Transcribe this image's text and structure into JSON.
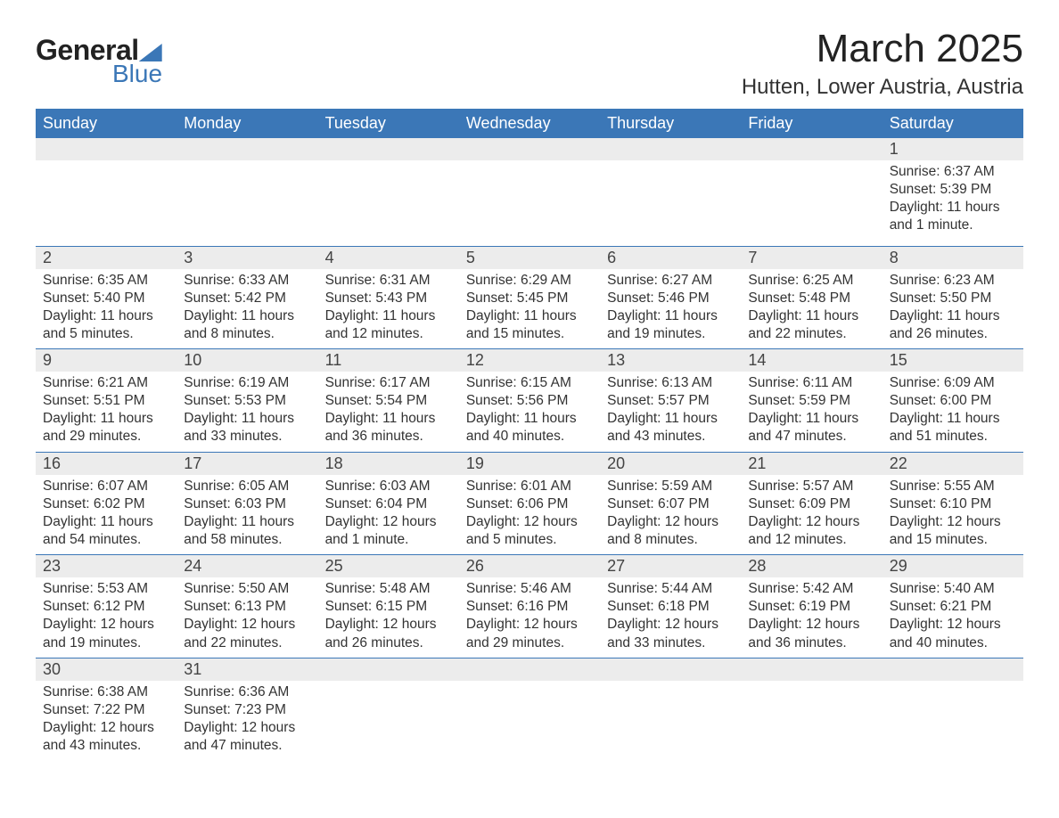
{
  "brand": {
    "general": "General",
    "blue": "Blue"
  },
  "title": "March 2025",
  "location": "Hutten, Lower Austria, Austria",
  "colors": {
    "header_bg": "#3b77b7",
    "header_text": "#ffffff",
    "daynum_bg": "#ececec",
    "row_divider": "#3b77b7",
    "text": "#333333",
    "page_bg": "#ffffff"
  },
  "weekdays": [
    "Sunday",
    "Monday",
    "Tuesday",
    "Wednesday",
    "Thursday",
    "Friday",
    "Saturday"
  ],
  "weeks": [
    [
      null,
      null,
      null,
      null,
      null,
      null,
      {
        "n": "1",
        "sr": "Sunrise: 6:37 AM",
        "ss": "Sunset: 5:39 PM",
        "d1": "Daylight: 11 hours",
        "d2": "and 1 minute."
      }
    ],
    [
      {
        "n": "2",
        "sr": "Sunrise: 6:35 AM",
        "ss": "Sunset: 5:40 PM",
        "d1": "Daylight: 11 hours",
        "d2": "and 5 minutes."
      },
      {
        "n": "3",
        "sr": "Sunrise: 6:33 AM",
        "ss": "Sunset: 5:42 PM",
        "d1": "Daylight: 11 hours",
        "d2": "and 8 minutes."
      },
      {
        "n": "4",
        "sr": "Sunrise: 6:31 AM",
        "ss": "Sunset: 5:43 PM",
        "d1": "Daylight: 11 hours",
        "d2": "and 12 minutes."
      },
      {
        "n": "5",
        "sr": "Sunrise: 6:29 AM",
        "ss": "Sunset: 5:45 PM",
        "d1": "Daylight: 11 hours",
        "d2": "and 15 minutes."
      },
      {
        "n": "6",
        "sr": "Sunrise: 6:27 AM",
        "ss": "Sunset: 5:46 PM",
        "d1": "Daylight: 11 hours",
        "d2": "and 19 minutes."
      },
      {
        "n": "7",
        "sr": "Sunrise: 6:25 AM",
        "ss": "Sunset: 5:48 PM",
        "d1": "Daylight: 11 hours",
        "d2": "and 22 minutes."
      },
      {
        "n": "8",
        "sr": "Sunrise: 6:23 AM",
        "ss": "Sunset: 5:50 PM",
        "d1": "Daylight: 11 hours",
        "d2": "and 26 minutes."
      }
    ],
    [
      {
        "n": "9",
        "sr": "Sunrise: 6:21 AM",
        "ss": "Sunset: 5:51 PM",
        "d1": "Daylight: 11 hours",
        "d2": "and 29 minutes."
      },
      {
        "n": "10",
        "sr": "Sunrise: 6:19 AM",
        "ss": "Sunset: 5:53 PM",
        "d1": "Daylight: 11 hours",
        "d2": "and 33 minutes."
      },
      {
        "n": "11",
        "sr": "Sunrise: 6:17 AM",
        "ss": "Sunset: 5:54 PM",
        "d1": "Daylight: 11 hours",
        "d2": "and 36 minutes."
      },
      {
        "n": "12",
        "sr": "Sunrise: 6:15 AM",
        "ss": "Sunset: 5:56 PM",
        "d1": "Daylight: 11 hours",
        "d2": "and 40 minutes."
      },
      {
        "n": "13",
        "sr": "Sunrise: 6:13 AM",
        "ss": "Sunset: 5:57 PM",
        "d1": "Daylight: 11 hours",
        "d2": "and 43 minutes."
      },
      {
        "n": "14",
        "sr": "Sunrise: 6:11 AM",
        "ss": "Sunset: 5:59 PM",
        "d1": "Daylight: 11 hours",
        "d2": "and 47 minutes."
      },
      {
        "n": "15",
        "sr": "Sunrise: 6:09 AM",
        "ss": "Sunset: 6:00 PM",
        "d1": "Daylight: 11 hours",
        "d2": "and 51 minutes."
      }
    ],
    [
      {
        "n": "16",
        "sr": "Sunrise: 6:07 AM",
        "ss": "Sunset: 6:02 PM",
        "d1": "Daylight: 11 hours",
        "d2": "and 54 minutes."
      },
      {
        "n": "17",
        "sr": "Sunrise: 6:05 AM",
        "ss": "Sunset: 6:03 PM",
        "d1": "Daylight: 11 hours",
        "d2": "and 58 minutes."
      },
      {
        "n": "18",
        "sr": "Sunrise: 6:03 AM",
        "ss": "Sunset: 6:04 PM",
        "d1": "Daylight: 12 hours",
        "d2": "and 1 minute."
      },
      {
        "n": "19",
        "sr": "Sunrise: 6:01 AM",
        "ss": "Sunset: 6:06 PM",
        "d1": "Daylight: 12 hours",
        "d2": "and 5 minutes."
      },
      {
        "n": "20",
        "sr": "Sunrise: 5:59 AM",
        "ss": "Sunset: 6:07 PM",
        "d1": "Daylight: 12 hours",
        "d2": "and 8 minutes."
      },
      {
        "n": "21",
        "sr": "Sunrise: 5:57 AM",
        "ss": "Sunset: 6:09 PM",
        "d1": "Daylight: 12 hours",
        "d2": "and 12 minutes."
      },
      {
        "n": "22",
        "sr": "Sunrise: 5:55 AM",
        "ss": "Sunset: 6:10 PM",
        "d1": "Daylight: 12 hours",
        "d2": "and 15 minutes."
      }
    ],
    [
      {
        "n": "23",
        "sr": "Sunrise: 5:53 AM",
        "ss": "Sunset: 6:12 PM",
        "d1": "Daylight: 12 hours",
        "d2": "and 19 minutes."
      },
      {
        "n": "24",
        "sr": "Sunrise: 5:50 AM",
        "ss": "Sunset: 6:13 PM",
        "d1": "Daylight: 12 hours",
        "d2": "and 22 minutes."
      },
      {
        "n": "25",
        "sr": "Sunrise: 5:48 AM",
        "ss": "Sunset: 6:15 PM",
        "d1": "Daylight: 12 hours",
        "d2": "and 26 minutes."
      },
      {
        "n": "26",
        "sr": "Sunrise: 5:46 AM",
        "ss": "Sunset: 6:16 PM",
        "d1": "Daylight: 12 hours",
        "d2": "and 29 minutes."
      },
      {
        "n": "27",
        "sr": "Sunrise: 5:44 AM",
        "ss": "Sunset: 6:18 PM",
        "d1": "Daylight: 12 hours",
        "d2": "and 33 minutes."
      },
      {
        "n": "28",
        "sr": "Sunrise: 5:42 AM",
        "ss": "Sunset: 6:19 PM",
        "d1": "Daylight: 12 hours",
        "d2": "and 36 minutes."
      },
      {
        "n": "29",
        "sr": "Sunrise: 5:40 AM",
        "ss": "Sunset: 6:21 PM",
        "d1": "Daylight: 12 hours",
        "d2": "and 40 minutes."
      }
    ],
    [
      {
        "n": "30",
        "sr": "Sunrise: 6:38 AM",
        "ss": "Sunset: 7:22 PM",
        "d1": "Daylight: 12 hours",
        "d2": "and 43 minutes."
      },
      {
        "n": "31",
        "sr": "Sunrise: 6:36 AM",
        "ss": "Sunset: 7:23 PM",
        "d1": "Daylight: 12 hours",
        "d2": "and 47 minutes."
      },
      null,
      null,
      null,
      null,
      null
    ]
  ]
}
